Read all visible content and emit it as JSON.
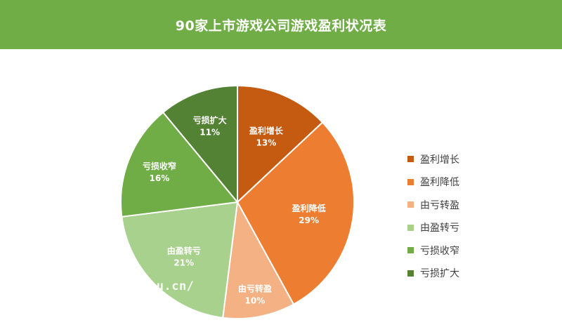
{
  "header": {
    "title": "90家上市游戏公司游戏盈利状况表",
    "bg_color": "#70ad47"
  },
  "chart_data": {
    "type": "pie",
    "title": "90家上市游戏公司游戏盈利状况表",
    "categories": [
      "盈利增长",
      "盈利降低",
      "由亏转盈",
      "由盈转亏",
      "亏损收窄",
      "亏损扩大"
    ],
    "values": [
      13,
      29,
      10,
      21,
      16,
      11
    ],
    "value_labels": [
      "13%",
      "29%",
      "10%",
      "21%",
      "16%",
      "11%"
    ],
    "colors": [
      "#c55a11",
      "#ed7d31",
      "#f4b183",
      "#a9d18e",
      "#70ad47",
      "#548235"
    ],
    "legend_position": "right",
    "slice_border_color": "#ffffff"
  },
  "legend": {
    "items": [
      {
        "label": "盈利增长",
        "color": "#c55a11"
      },
      {
        "label": "盈利降低",
        "color": "#ed7d31"
      },
      {
        "label": "由亏转盈",
        "color": "#f4b183"
      },
      {
        "label": "由盈转亏",
        "color": "#a9d18e"
      },
      {
        "label": "亏损收窄",
        "color": "#70ad47"
      },
      {
        "label": "亏损扩大",
        "color": "#548235"
      }
    ]
  },
  "watermark": {
    "text": "su.cn/"
  }
}
